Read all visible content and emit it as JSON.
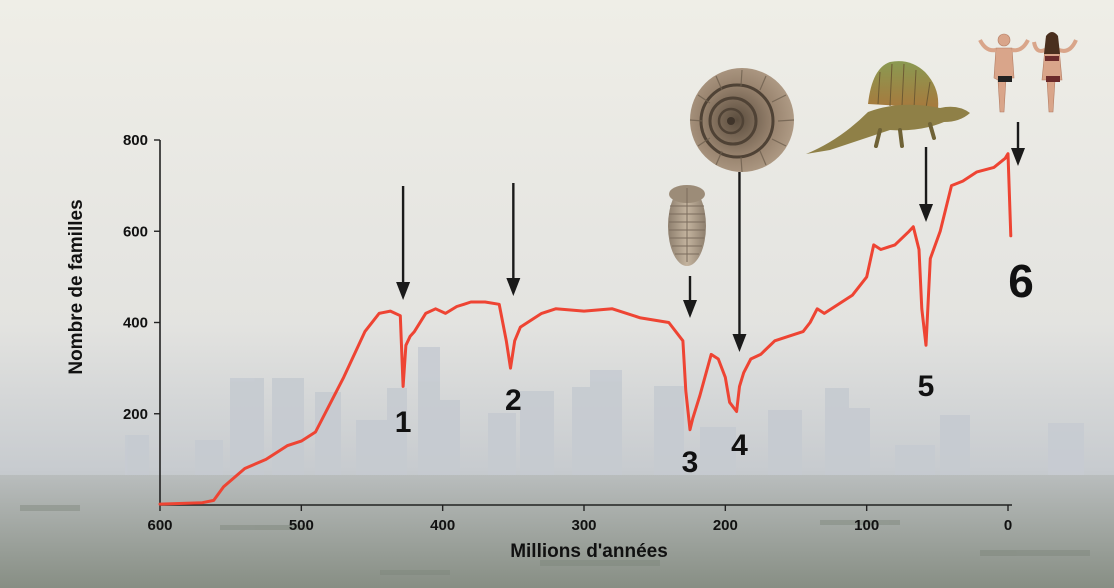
{
  "chart_data": {
    "type": "line",
    "title": "",
    "xlabel": "Millions d'années",
    "ylabel": "Nombre de familles",
    "xlim": [
      600,
      0
    ],
    "ylim": [
      0,
      800
    ],
    "x_ticks": [
      "600",
      "500",
      "400",
      "300",
      "200",
      "100",
      "0"
    ],
    "y_ticks": [
      "200",
      "400",
      "600",
      "800"
    ],
    "grid": false,
    "legend": "none",
    "line_color": "#ee4433",
    "series": [
      {
        "x": [
          600,
          570,
          562,
          555,
          540,
          525,
          510,
          500,
          490,
          470,
          455,
          445,
          437,
          430,
          428,
          426,
          423,
          420,
          412,
          405,
          398,
          390,
          385,
          380,
          370,
          360,
          355,
          352,
          349,
          345,
          340,
          330,
          320,
          300,
          280,
          260,
          240,
          230,
          228,
          225,
          223,
          218,
          210,
          205,
          200,
          197,
          192,
          190,
          187,
          182,
          175,
          165,
          155,
          145,
          140,
          135,
          130,
          120,
          110,
          100,
          95,
          90,
          80,
          70,
          67,
          63,
          61,
          58,
          55,
          48,
          40,
          32,
          22,
          10,
          2,
          0,
          -2
        ],
        "y": [
          2,
          5,
          10,
          40,
          80,
          100,
          130,
          140,
          160,
          280,
          380,
          420,
          425,
          415,
          260,
          350,
          370,
          380,
          420,
          430,
          420,
          435,
          440,
          445,
          445,
          440,
          360,
          300,
          360,
          390,
          400,
          420,
          430,
          425,
          430,
          410,
          400,
          360,
          250,
          165,
          190,
          240,
          330,
          320,
          280,
          225,
          205,
          260,
          290,
          320,
          330,
          360,
          370,
          380,
          400,
          430,
          420,
          440,
          460,
          500,
          570,
          560,
          570,
          600,
          610,
          560,
          430,
          350,
          540,
          600,
          700,
          710,
          730,
          740,
          760,
          770,
          590
        ]
      }
    ],
    "events": [
      {
        "label": "1",
        "x": 428
      },
      {
        "label": "2",
        "x": 350
      },
      {
        "label": "3",
        "x": 225
      },
      {
        "label": "4",
        "x": 190
      },
      {
        "label": "5",
        "x": 58
      },
      {
        "label": "6",
        "x": 0
      }
    ]
  },
  "illustrations": [
    "skyline-background",
    "trilobite-icon",
    "ammonite-icon",
    "dimetrodon-icon",
    "humans-icon"
  ]
}
